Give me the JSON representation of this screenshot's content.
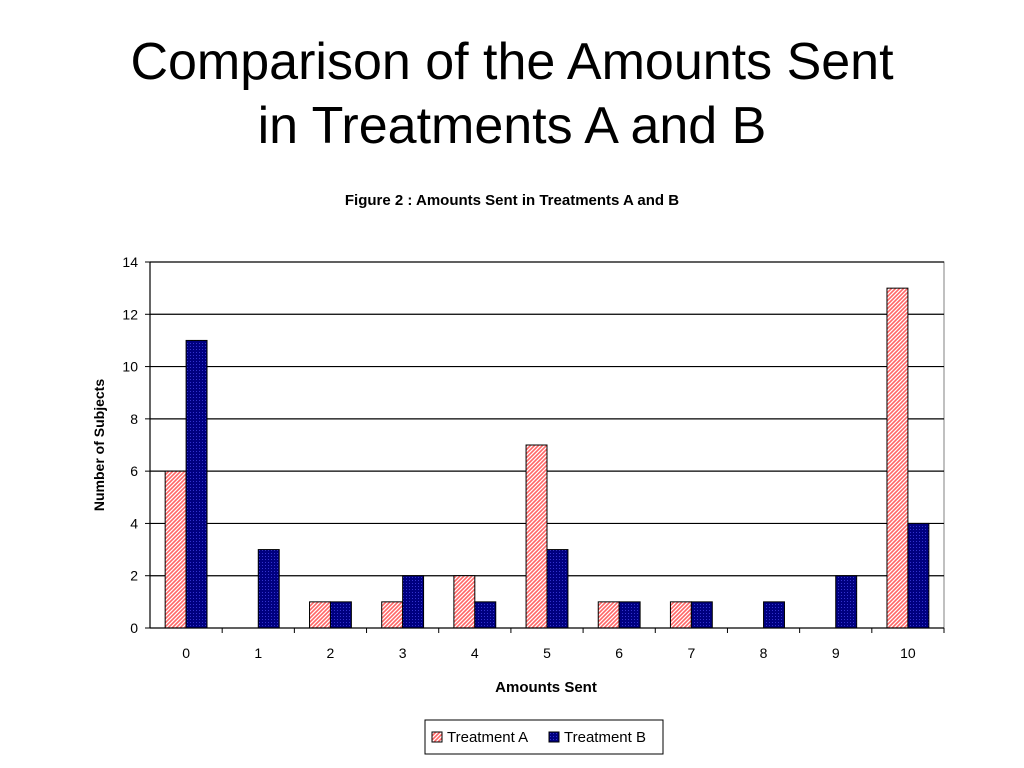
{
  "slide": {
    "title_line1": "Comparison of the Amounts Sent",
    "title_line2": "in Treatments A and B"
  },
  "chart_data": {
    "type": "bar",
    "title": "Figure 2 : Amounts Sent in Treatments A and B",
    "xlabel": "Amounts Sent",
    "ylabel": "Number of Subjects",
    "categories": [
      "0",
      "1",
      "2",
      "3",
      "4",
      "5",
      "6",
      "7",
      "8",
      "9",
      "10"
    ],
    "series": [
      {
        "name": "Treatment A",
        "values": [
          6,
          0,
          1,
          1,
          2,
          7,
          1,
          1,
          0,
          0,
          13
        ],
        "color": "#ff9999",
        "pattern": "diagonal-hatch"
      },
      {
        "name": "Treatment B",
        "values": [
          11,
          3,
          1,
          2,
          1,
          3,
          1,
          1,
          1,
          2,
          4
        ],
        "color": "#000080",
        "pattern": "dotted"
      }
    ],
    "ylim": [
      0,
      14
    ],
    "yticks": [
      "0",
      "2",
      "4",
      "6",
      "8",
      "10",
      "12",
      "14"
    ],
    "grid": true,
    "legend_position": "bottom"
  }
}
